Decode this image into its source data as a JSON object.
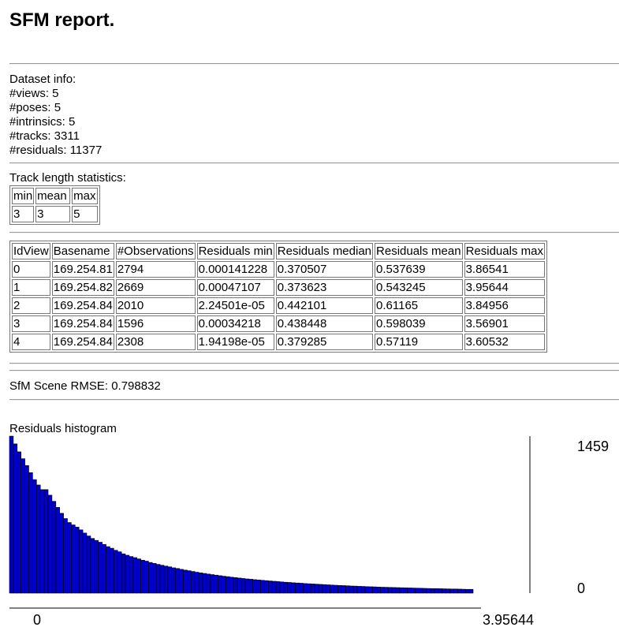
{
  "report": {
    "title": "SFM report."
  },
  "dataset": {
    "header": "Dataset info:",
    "lines": [
      "#views: 5",
      "#poses: 5",
      "#intrinsics: 5",
      "#tracks: 3311",
      "#residuals: 11377"
    ]
  },
  "track_stats": {
    "header": "Track length statistics:",
    "columns": [
      "min",
      "mean",
      "max"
    ],
    "values": [
      "3",
      "3",
      "5"
    ]
  },
  "views_table": {
    "columns": [
      "IdView",
      "Basename",
      "#Observations",
      "Residuals min",
      "Residuals median",
      "Residuals mean",
      "Residuals max"
    ],
    "rows": [
      [
        "0",
        "169.254.81",
        "2794",
        "0.000141228",
        "0.370507",
        "0.537639",
        "3.86541"
      ],
      [
        "1",
        "169.254.82",
        "2669",
        "0.00047107",
        "0.373623",
        "0.543245",
        "3.95644"
      ],
      [
        "2",
        "169.254.84",
        "2010",
        "2.24501e-05",
        "0.442101",
        "0.61165",
        "3.84956"
      ],
      [
        "3",
        "169.254.84",
        "1596",
        "0.00034218",
        "0.438448",
        "0.598039",
        "3.56901"
      ],
      [
        "4",
        "169.254.84",
        "2308",
        "1.94198e-05",
        "0.379285",
        "0.57119",
        "3.60532"
      ]
    ]
  },
  "rmse": {
    "text": "SfM Scene RMSE: 0.798832"
  },
  "chart_data": {
    "type": "bar",
    "title": "Residuals histogram",
    "x_range": [
      0,
      3.95644
    ],
    "y_range": [
      0,
      1459
    ],
    "x_tick_labels": [
      "0",
      "3.95644"
    ],
    "y_tick_labels": [
      "1459",
      "0"
    ],
    "bar_color": "#0000cc",
    "bar_stroke": "#000000",
    "values": [
      1459,
      1387,
      1313,
      1249,
      1186,
      1120,
      1055,
      1005,
      962,
      962,
      910,
      853,
      797,
      742,
      693,
      656,
      634,
      613,
      588,
      558,
      531,
      508,
      490,
      473,
      453,
      432,
      417,
      398,
      384,
      365,
      352,
      340,
      330,
      318,
      306,
      297,
      285,
      276,
      267,
      259,
      251,
      244,
      235,
      229,
      221,
      214,
      208,
      201,
      194,
      188,
      183,
      177,
      172,
      167,
      162,
      157,
      153,
      148,
      144,
      140,
      136,
      132,
      129,
      125,
      122,
      119,
      116,
      113,
      110,
      107,
      104,
      101,
      99,
      96,
      94,
      92,
      89,
      87,
      85,
      83,
      81,
      79,
      77,
      75,
      73,
      71,
      70,
      68,
      66,
      65,
      63,
      62,
      60,
      59,
      58,
      56,
      55,
      54,
      53,
      52,
      51,
      50,
      49,
      48,
      47,
      46,
      45,
      44,
      43,
      42,
      42,
      41,
      40,
      39,
      38,
      38,
      37,
      36,
      35,
      35
    ]
  }
}
